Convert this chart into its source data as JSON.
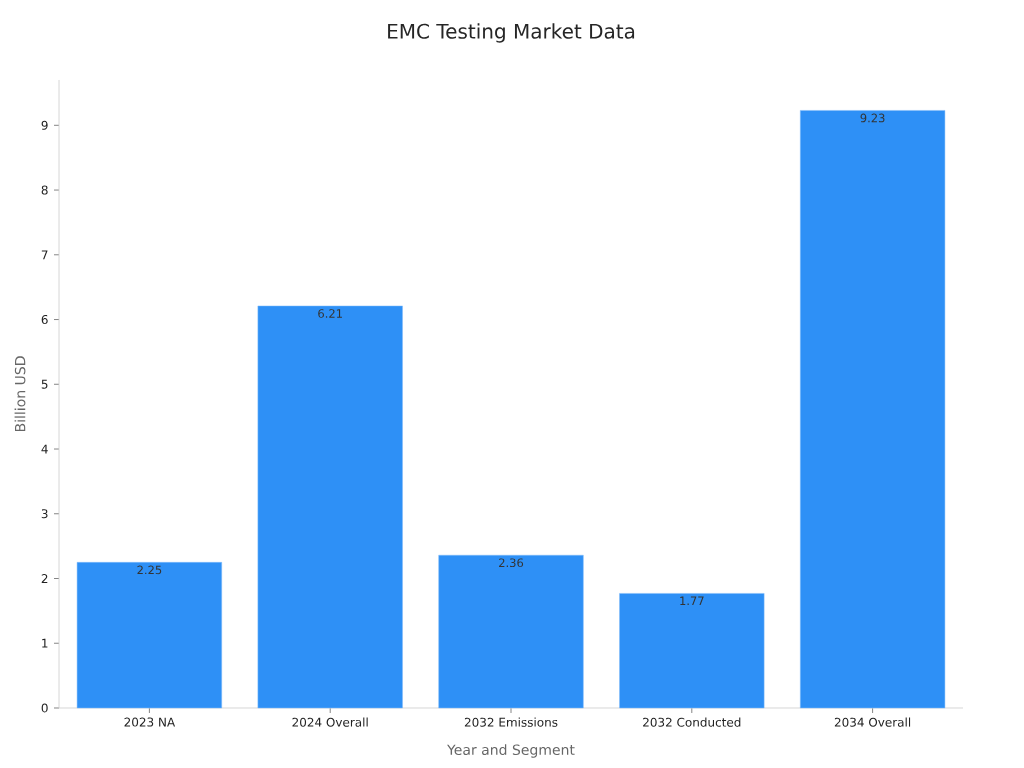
{
  "chart_data": {
    "type": "bar",
    "title": "EMC Testing Market Data",
    "xlabel": "Year and Segment",
    "ylabel": "Billion USD",
    "categories": [
      "2023 NA",
      "2024 Overall",
      "2032 Emissions",
      "2032 Conducted",
      "2034 Overall"
    ],
    "values": [
      2.25,
      6.21,
      2.36,
      1.77,
      9.23
    ],
    "color": "#2e90f6",
    "ylim": [
      0,
      9.7
    ],
    "yticks": [
      0,
      1,
      2,
      3,
      4,
      5,
      6,
      7,
      8,
      9
    ],
    "data_labels": true
  }
}
